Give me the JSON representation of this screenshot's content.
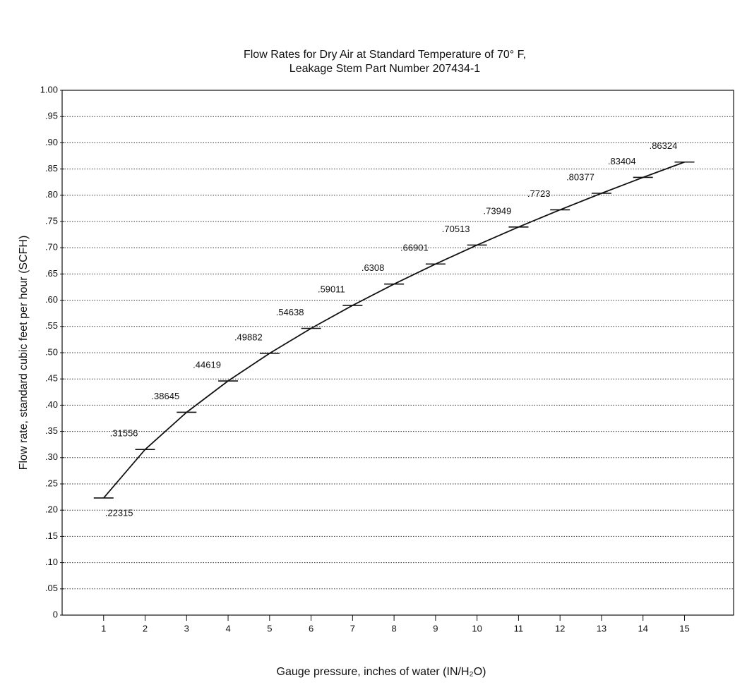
{
  "chart_data": {
    "type": "line",
    "title": "Flow Rates for Dry Air at Standard Temperature of 70° F,",
    "subtitle": "Leakage Stem Part Number 207434-1",
    "x_label": "Gauge pressure, inches of water (IN/H₂O)",
    "y_label": "Flow rate, standard cubic feet per hour (SCFH)",
    "x": [
      1,
      2,
      3,
      4,
      5,
      6,
      7,
      8,
      9,
      10,
      11,
      12,
      13,
      14,
      15
    ],
    "values": [
      0.22315,
      0.31556,
      0.38645,
      0.44619,
      0.49882,
      0.54638,
      0.59011,
      0.6308,
      0.66901,
      0.70513,
      0.73949,
      0.7723,
      0.80377,
      0.83404,
      0.86324
    ],
    "value_labels": [
      ".22315",
      ".31556",
      ".38645",
      ".44619",
      ".49882",
      ".54638",
      ".59011",
      ".6308",
      ".66901",
      ".70513",
      ".73949",
      ".7723",
      ".80377",
      ".83404",
      ".86324"
    ],
    "color": "#111111",
    "xlim": [
      0,
      16.2
    ],
    "xticks": [
      1,
      2,
      3,
      4,
      5,
      6,
      7,
      8,
      9,
      10,
      11,
      12,
      13,
      14,
      15
    ],
    "ylim": [
      0,
      1
    ],
    "yticks": [
      0,
      {
        "value": 0.05,
        "label": ".05"
      },
      {
        "value": 0.1,
        "label": ".10"
      },
      {
        "value": 0.15,
        "label": ".15"
      },
      {
        "value": 0.2,
        "label": ".20"
      },
      {
        "value": 0.25,
        "label": ".25"
      },
      {
        "value": 0.3,
        "label": ".30"
      },
      {
        "value": 0.35,
        "label": ".35"
      },
      {
        "value": 0.4,
        "label": ".40"
      },
      {
        "value": 0.45,
        "label": ".45"
      },
      {
        "value": 0.5,
        "label": ".50"
      },
      {
        "value": 0.55,
        "label": ".55"
      },
      {
        "value": 0.6,
        "label": ".60"
      },
      {
        "value": 0.65,
        "label": ".65"
      },
      {
        "value": 0.7,
        "label": ".70"
      },
      {
        "value": 0.75,
        "label": ".75"
      },
      {
        "value": 0.8,
        "label": ".80"
      },
      {
        "value": 0.85,
        "label": ".85"
      },
      {
        "value": 0.9,
        "label": ".90"
      },
      {
        "value": 0.95,
        "label": ".95"
      },
      {
        "value": 1,
        "label": "1.00"
      }
    ],
    "grid": true
  }
}
